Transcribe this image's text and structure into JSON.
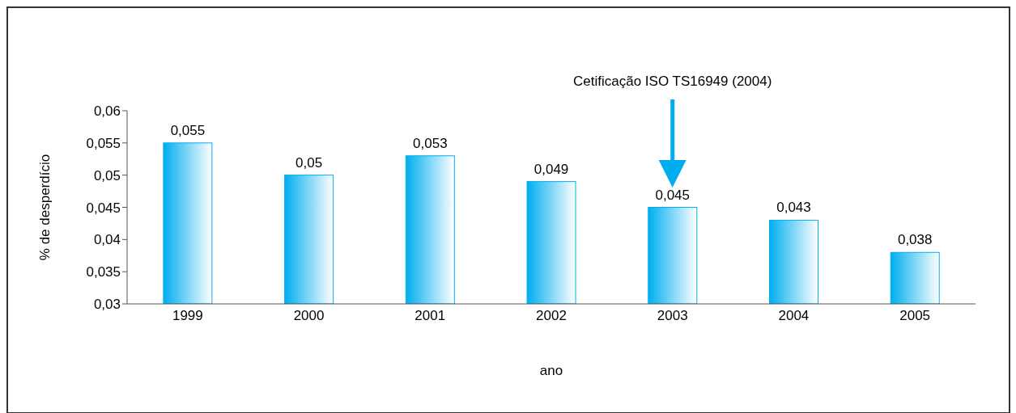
{
  "chart_data": {
    "type": "bar",
    "xlabel": "ano",
    "ylabel": "% de desperdício",
    "categories": [
      "1999",
      "2000",
      "2001",
      "2002",
      "2003",
      "2004",
      "2005"
    ],
    "values": [
      0.055,
      0.05,
      0.053,
      0.049,
      0.045,
      0.043,
      0.038
    ],
    "value_labels": [
      "0,055",
      "0,05",
      "0,053",
      "0,049",
      "0,045",
      "0,043",
      "0,038"
    ],
    "color": "#00aeef",
    "ylim": [
      0.03,
      0.06
    ],
    "yticks": [
      {
        "value": 0.03,
        "label": "0,03"
      },
      {
        "value": 0.035,
        "label": "0,035"
      },
      {
        "value": 0.04,
        "label": "0,04"
      },
      {
        "value": 0.045,
        "label": "0,045"
      },
      {
        "value": 0.05,
        "label": "0,05"
      },
      {
        "value": 0.055,
        "label": "0,055"
      },
      {
        "value": 0.06,
        "label": "0,06"
      }
    ],
    "annotations": [
      "Cetificação ISO TS16949 (2004)"
    ],
    "grid": false,
    "legend": false
  }
}
